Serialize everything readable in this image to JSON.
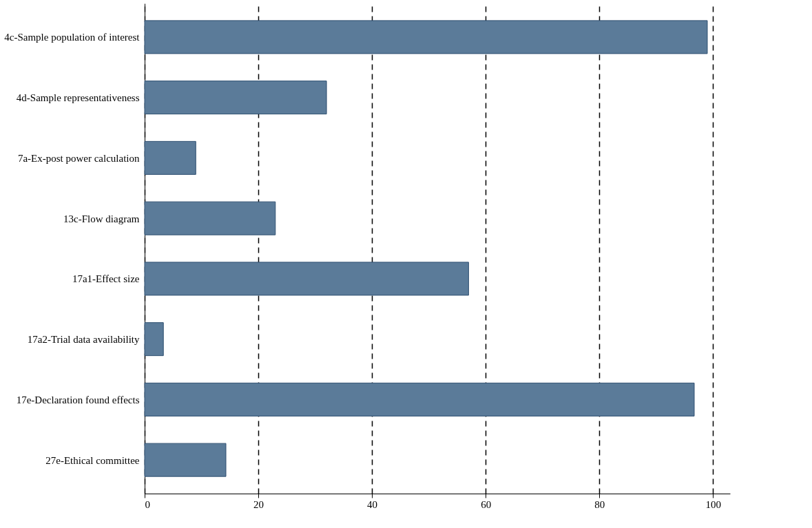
{
  "chart_data": {
    "type": "bar",
    "orientation": "horizontal",
    "categories": [
      "4c-Sample population of interest",
      "4d-Sample representativeness",
      "7a-Ex-post power calculation",
      "13c-Flow diagram",
      "17a1-Effect size",
      "17a2-Trial data availability",
      "17e-Declaration found effects",
      "27e-Ethical committee"
    ],
    "values": [
      99,
      32,
      9,
      23,
      57,
      3.3,
      96.7,
      14.3
    ],
    "color": "#5b7b99",
    "xlim": [
      0,
      103
    ],
    "xticks": [
      0,
      20,
      40,
      60,
      80,
      100
    ],
    "grid": "x",
    "line_style": "dashed"
  }
}
